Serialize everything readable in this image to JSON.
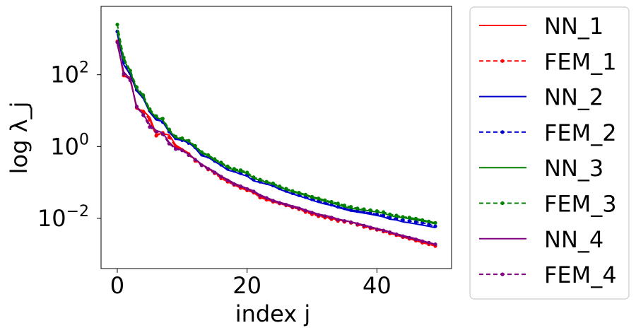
{
  "chart_data": {
    "type": "line",
    "xlabel": "index j",
    "ylabel": "log λ_j",
    "xlim": [
      -2.5,
      51.5
    ],
    "ylim": [
      0.0004,
      8000
    ],
    "yscale": "log",
    "x_ticks": [
      0,
      20,
      40
    ],
    "y_ticks": [
      100,
      1,
      0.01
    ],
    "y_tick_labels": [
      "10^2",
      "10^0",
      "10^-2"
    ],
    "grid": false,
    "legend_position": "outside-right",
    "x": [
      0,
      1,
      2,
      3,
      4,
      5,
      6,
      7,
      8,
      9,
      10,
      11,
      12,
      13,
      14,
      15,
      16,
      17,
      18,
      19,
      20,
      21,
      22,
      23,
      24,
      25,
      26,
      27,
      28,
      29,
      30,
      31,
      32,
      33,
      34,
      35,
      36,
      37,
      38,
      39,
      40,
      41,
      42,
      43,
      44,
      45,
      46,
      47,
      48,
      49
    ],
    "series": [
      {
        "name": "NN_1",
        "color": "#ff0000",
        "style": "solid",
        "values": [
          950,
          90,
          85,
          11,
          10,
          6.5,
          2.2,
          2.3,
          2.1,
          1.1,
          0.85,
          0.65,
          0.42,
          0.32,
          0.24,
          0.19,
          0.14,
          0.11,
          0.09,
          0.075,
          0.065,
          0.055,
          0.04,
          0.035,
          0.03,
          0.027,
          0.024,
          0.021,
          0.019,
          0.016,
          0.014,
          0.012,
          0.011,
          0.01,
          0.009,
          0.0085,
          0.008,
          0.007,
          0.006,
          0.0055,
          0.005,
          0.0045,
          0.004,
          0.0035,
          0.003,
          0.0028,
          0.0025,
          0.0022,
          0.002,
          0.0018
        ]
      },
      {
        "name": "FEM_1",
        "color": "#ff0000",
        "style": "dashed",
        "values": [
          850,
          95,
          75,
          12,
          9.5,
          5.5,
          2.0,
          2.4,
          1.8,
          1.0,
          0.8,
          0.62,
          0.4,
          0.3,
          0.23,
          0.18,
          0.13,
          0.105,
          0.085,
          0.07,
          0.06,
          0.052,
          0.038,
          0.033,
          0.029,
          0.026,
          0.023,
          0.02,
          0.018,
          0.015,
          0.013,
          0.0115,
          0.0105,
          0.0095,
          0.0085,
          0.008,
          0.0075,
          0.0066,
          0.0058,
          0.0053,
          0.0048,
          0.0043,
          0.0038,
          0.0034,
          0.003,
          0.0027,
          0.0024,
          0.0021,
          0.0019,
          0.0017
        ]
      },
      {
        "name": "NN_2",
        "color": "#0000cc",
        "style": "solid",
        "values": [
          1400,
          190,
          100,
          35,
          22,
          9,
          5.5,
          5.0,
          2.5,
          1.6,
          1.5,
          1.3,
          0.9,
          0.55,
          0.5,
          0.38,
          0.3,
          0.22,
          0.2,
          0.17,
          0.15,
          0.11,
          0.1,
          0.09,
          0.08,
          0.065,
          0.055,
          0.048,
          0.042,
          0.037,
          0.032,
          0.028,
          0.025,
          0.023,
          0.02,
          0.018,
          0.016,
          0.015,
          0.014,
          0.013,
          0.012,
          0.011,
          0.0095,
          0.009,
          0.008,
          0.0075,
          0.007,
          0.0065,
          0.006,
          0.0055
        ]
      },
      {
        "name": "FEM_2",
        "color": "#0000cc",
        "style": "dashed",
        "values": [
          1600,
          220,
          110,
          38,
          24,
          10,
          6,
          4.8,
          2.6,
          1.7,
          1.5,
          1.25,
          0.95,
          0.6,
          0.52,
          0.4,
          0.31,
          0.24,
          0.21,
          0.18,
          0.16,
          0.12,
          0.105,
          0.095,
          0.082,
          0.068,
          0.058,
          0.05,
          0.044,
          0.039,
          0.034,
          0.03,
          0.027,
          0.024,
          0.021,
          0.019,
          0.017,
          0.016,
          0.015,
          0.014,
          0.013,
          0.012,
          0.0105,
          0.0098,
          0.009,
          0.0085,
          0.008,
          0.0075,
          0.0068,
          0.006
        ]
      },
      {
        "name": "NN_3",
        "color": "#008000",
        "style": "solid",
        "values": [
          1800,
          260,
          120,
          40,
          25,
          10,
          6.5,
          5.5,
          2.8,
          1.8,
          1.6,
          1.4,
          1.0,
          0.65,
          0.55,
          0.42,
          0.34,
          0.26,
          0.22,
          0.2,
          0.18,
          0.13,
          0.115,
          0.1,
          0.09,
          0.074,
          0.063,
          0.055,
          0.049,
          0.044,
          0.038,
          0.034,
          0.03,
          0.027,
          0.024,
          0.021,
          0.019,
          0.018,
          0.017,
          0.016,
          0.015,
          0.014,
          0.012,
          0.011,
          0.0105,
          0.0098,
          0.009,
          0.0085,
          0.0078,
          0.007
        ]
      },
      {
        "name": "FEM_3",
        "color": "#008000",
        "style": "dashed",
        "values": [
          2500,
          300,
          130,
          45,
          27,
          11,
          7,
          6,
          3.0,
          1.9,
          1.7,
          1.45,
          1.05,
          0.7,
          0.58,
          0.45,
          0.36,
          0.28,
          0.24,
          0.22,
          0.19,
          0.14,
          0.12,
          0.105,
          0.095,
          0.078,
          0.067,
          0.058,
          0.052,
          0.046,
          0.04,
          0.036,
          0.032,
          0.029,
          0.026,
          0.023,
          0.021,
          0.019,
          0.018,
          0.017,
          0.016,
          0.015,
          0.013,
          0.012,
          0.011,
          0.0105,
          0.0098,
          0.009,
          0.0082,
          0.0075
        ]
      },
      {
        "name": "NN_4",
        "color": "#800080",
        "style": "solid",
        "values": [
          700,
          120,
          75,
          12,
          8,
          4,
          2.8,
          2.4,
          1.3,
          0.9,
          0.8,
          0.6,
          0.45,
          0.32,
          0.25,
          0.2,
          0.15,
          0.12,
          0.095,
          0.08,
          0.068,
          0.058,
          0.045,
          0.038,
          0.032,
          0.028,
          0.025,
          0.022,
          0.02,
          0.017,
          0.015,
          0.013,
          0.012,
          0.011,
          0.0095,
          0.0088,
          0.008,
          0.0072,
          0.0065,
          0.0058,
          0.0052,
          0.0047,
          0.0042,
          0.0037,
          0.0033,
          0.003,
          0.0027,
          0.0024,
          0.0021,
          0.0019
        ]
      },
      {
        "name": "FEM_4",
        "color": "#800080",
        "style": "dashed",
        "values": [
          800,
          105,
          70,
          13,
          7.5,
          3.5,
          2.6,
          2.2,
          1.2,
          0.85,
          0.78,
          0.58,
          0.43,
          0.3,
          0.24,
          0.19,
          0.145,
          0.115,
          0.09,
          0.078,
          0.066,
          0.056,
          0.043,
          0.037,
          0.031,
          0.027,
          0.024,
          0.021,
          0.019,
          0.0165,
          0.0145,
          0.0125,
          0.0115,
          0.0105,
          0.0092,
          0.0085,
          0.0078,
          0.007,
          0.0063,
          0.0056,
          0.005,
          0.0046,
          0.0041,
          0.0036,
          0.0032,
          0.0029,
          0.0026,
          0.0023,
          0.0021,
          0.0019
        ]
      }
    ]
  }
}
